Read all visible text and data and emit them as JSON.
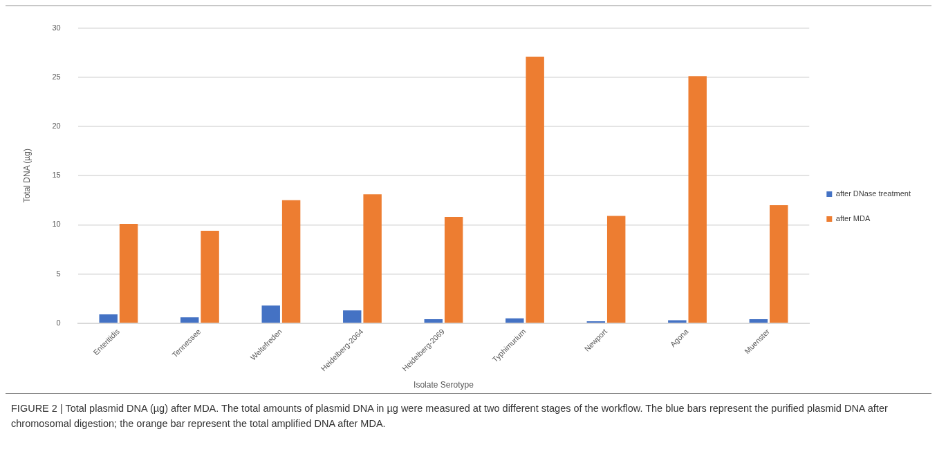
{
  "chart_data": {
    "type": "bar",
    "xlabel": "Isolate Serotype",
    "ylabel": "Total DNA (µg)",
    "categories": [
      "Enteritidis",
      "Tennessee",
      "Weltefreden",
      "Heidelberg-2064",
      "Heidelberg-2069",
      "Typhimurium",
      "Newport",
      "Agona",
      "Muenster"
    ],
    "series": [
      {
        "name": "after DNase treatment",
        "color": "#4472c4",
        "values": [
          0.9,
          0.6,
          1.8,
          1.3,
          0.4,
          0.5,
          0.2,
          0.3,
          0.4
        ]
      },
      {
        "name": "after MDA",
        "color": "#ed7d31",
        "values": [
          10.1,
          9.4,
          12.5,
          13.1,
          10.8,
          27.1,
          10.9,
          25.1,
          12.0
        ]
      }
    ],
    "ylim": [
      0,
      30
    ],
    "yticks": [
      0,
      5,
      10,
      15,
      20,
      25,
      30
    ],
    "grid": "y",
    "legend": "right",
    "annotations": [
      "FIGURE 2 | Total plasmid DNA (µg) after MDA. The total amounts of plasmid DNA in µg were measured at two different stages of the workflow. The blue bars represent the purified plasmid DNA after chromosomal digestion; the orange bar represent the total amplified DNA after MDA."
    ]
  }
}
